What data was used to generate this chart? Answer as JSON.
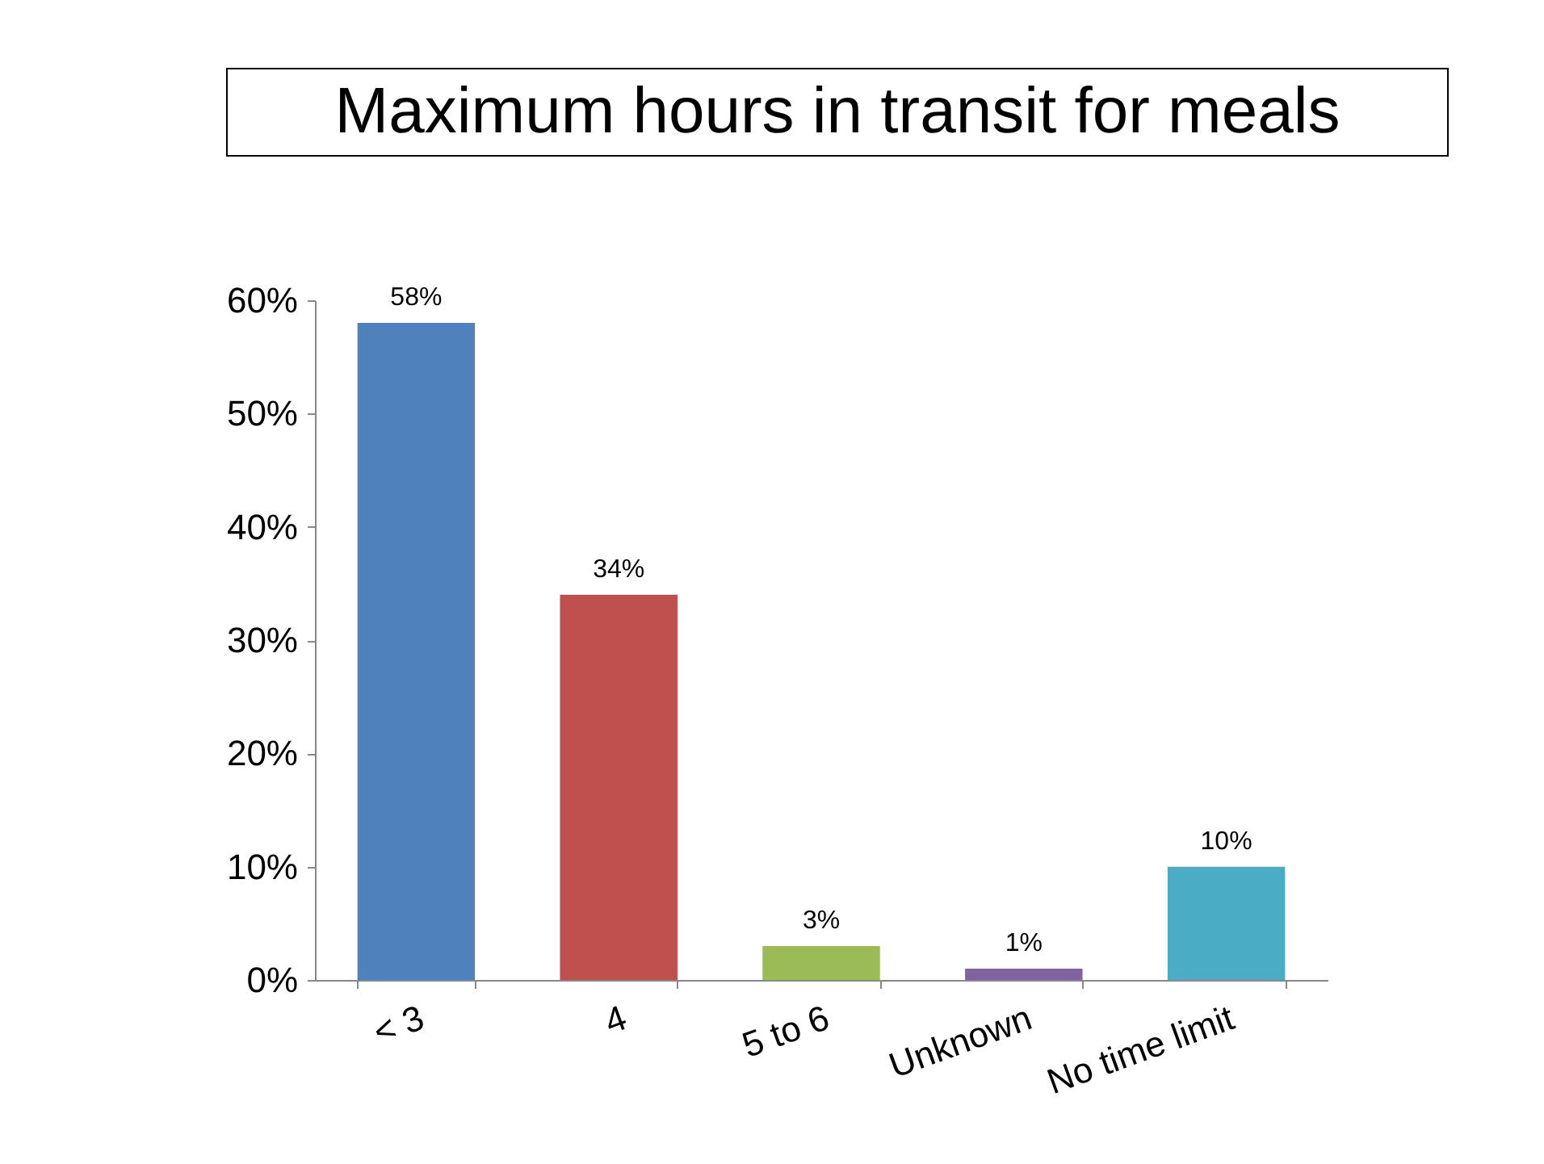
{
  "chart_data": {
    "type": "bar",
    "title": "Maximum hours in transit for meals",
    "categories": [
      "< 3",
      "4",
      "5 to 6",
      "Unknown",
      "No time limit"
    ],
    "values": [
      58,
      34,
      3,
      1,
      10
    ],
    "colors": [
      "#4f81bd",
      "#c0504d",
      "#9bbb59",
      "#8064a2",
      "#4bacc6"
    ],
    "value_labels": [
      "58%",
      "34%",
      "3%",
      "1%",
      "10%"
    ],
    "ylim": [
      0,
      60
    ],
    "yticks": [
      {
        "value": 0,
        "label": "0%"
      },
      {
        "value": 10,
        "label": "10%"
      },
      {
        "value": 20,
        "label": "20%"
      },
      {
        "value": 30,
        "label": "30%"
      },
      {
        "value": 40,
        "label": "40%"
      },
      {
        "value": 50,
        "label": "50%"
      },
      {
        "value": 60,
        "label": "60%"
      }
    ],
    "grid": false,
    "legend": false
  }
}
